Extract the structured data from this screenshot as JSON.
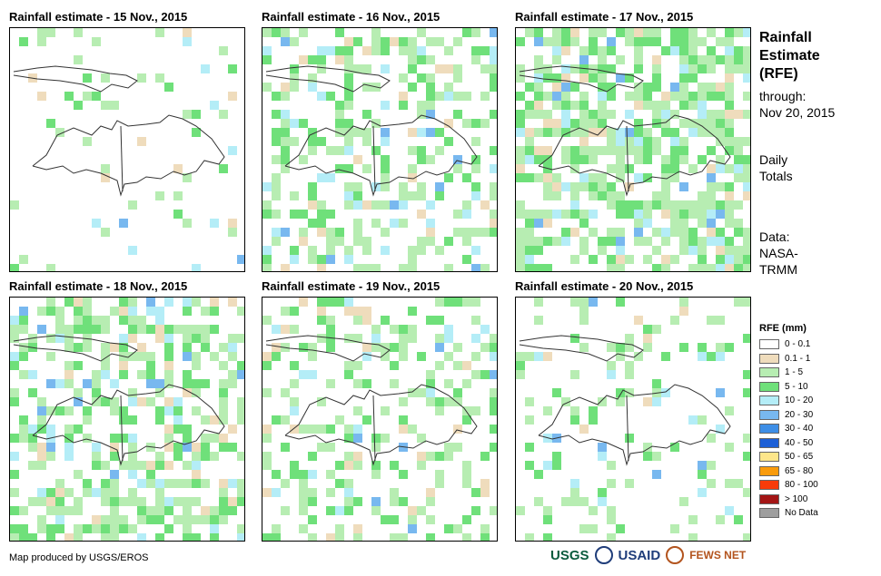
{
  "panels": [
    {
      "title": "Rainfall estimate - 15 Nov., 2015",
      "seed": 15,
      "bias": 0.1
    },
    {
      "title": "Rainfall estimate - 16 Nov., 2015",
      "seed": 16,
      "bias": 0.55
    },
    {
      "title": "Rainfall estimate - 17 Nov., 2015",
      "seed": 17,
      "bias": 0.85
    },
    {
      "title": "Rainfall estimate - 18 Nov., 2015",
      "seed": 18,
      "bias": 0.75
    },
    {
      "title": "Rainfall estimate - 19 Nov., 2015",
      "seed": 19,
      "bias": 0.45
    },
    {
      "title": "Rainfall estimate - 20 Nov., 2015",
      "seed": 20,
      "bias": 0.25
    }
  ],
  "side": {
    "title_line1": "Rainfall",
    "title_line2": "Estimate",
    "title_line3": "(RFE)",
    "through": "through:",
    "date": "Nov 20, 2015",
    "totals_line1": "Daily",
    "totals_line2": "Totals",
    "data_line1": "Data:",
    "data_line2": "NASA-",
    "data_line3": "TRMM"
  },
  "legend": {
    "title": "RFE (mm)",
    "items": [
      {
        "label": "0 - 0.1",
        "color": "#ffffff"
      },
      {
        "label": "0.1 - 1",
        "color": "#efdcbc"
      },
      {
        "label": "1 - 5",
        "color": "#b7edb2"
      },
      {
        "label": "5 - 10",
        "color": "#6fe07a"
      },
      {
        "label": "10 - 20",
        "color": "#b4edf7"
      },
      {
        "label": "20 - 30",
        "color": "#78b8ef"
      },
      {
        "label": "30 - 40",
        "color": "#3e8ee6"
      },
      {
        "label": "40 - 50",
        "color": "#1c5fd6"
      },
      {
        "label": "50 - 65",
        "color": "#fde68a"
      },
      {
        "label": "65 - 80",
        "color": "#f99b0c"
      },
      {
        "label": "80 - 100",
        "color": "#f73b0a"
      },
      {
        "label": "> 100",
        "color": "#a31515"
      },
      {
        "label": "No Data",
        "color": "#9e9e9e"
      }
    ]
  },
  "credit": "Map produced by USGS/EROS",
  "logos": {
    "usgs": "USGS",
    "usaid": "USAID",
    "fews": "FEWS NET"
  }
}
